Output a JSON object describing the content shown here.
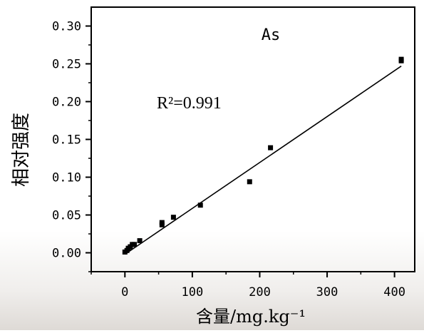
{
  "chart_data": {
    "type": "scatter",
    "title": "As",
    "annotation": "R²=0.991",
    "xlabel": "含量/mg.kg⁻¹",
    "ylabel": "相对强度",
    "xlim": [
      -50,
      430
    ],
    "ylim": [
      -0.025,
      0.325
    ],
    "xticks": [
      0,
      100,
      200,
      300,
      400
    ],
    "yticks": [
      0.0,
      0.05,
      0.1,
      0.15,
      0.2,
      0.25,
      0.3
    ],
    "xtick_labels": [
      "0",
      "100",
      "200",
      "300",
      "400"
    ],
    "ytick_labels": [
      "0.00",
      "0.05",
      "0.10",
      "0.15",
      "0.20",
      "0.25",
      "0.30"
    ],
    "grid": false,
    "series": [
      {
        "points": [
          {
            "x": 0,
            "y": 0.001
          },
          {
            "x": 3,
            "y": 0.003
          },
          {
            "x": 5,
            "y": 0.006
          },
          {
            "x": 8,
            "y": 0.008
          },
          {
            "x": 11,
            "y": 0.011
          },
          {
            "x": 14,
            "y": 0.011
          },
          {
            "x": 22,
            "y": 0.016
          },
          {
            "x": 55,
            "y": 0.037
          },
          {
            "x": 55,
            "y": 0.04
          },
          {
            "x": 72,
            "y": 0.047
          },
          {
            "x": 112,
            "y": 0.063
          },
          {
            "x": 185,
            "y": 0.094
          },
          {
            "x": 216,
            "y": 0.139
          },
          {
            "x": 410,
            "y": 0.254
          },
          {
            "x": 410,
            "y": 0.256
          }
        ]
      }
    ],
    "fit_line": {
      "x": [
        0,
        410
      ],
      "y": [
        -0.002,
        0.247
      ]
    }
  }
}
